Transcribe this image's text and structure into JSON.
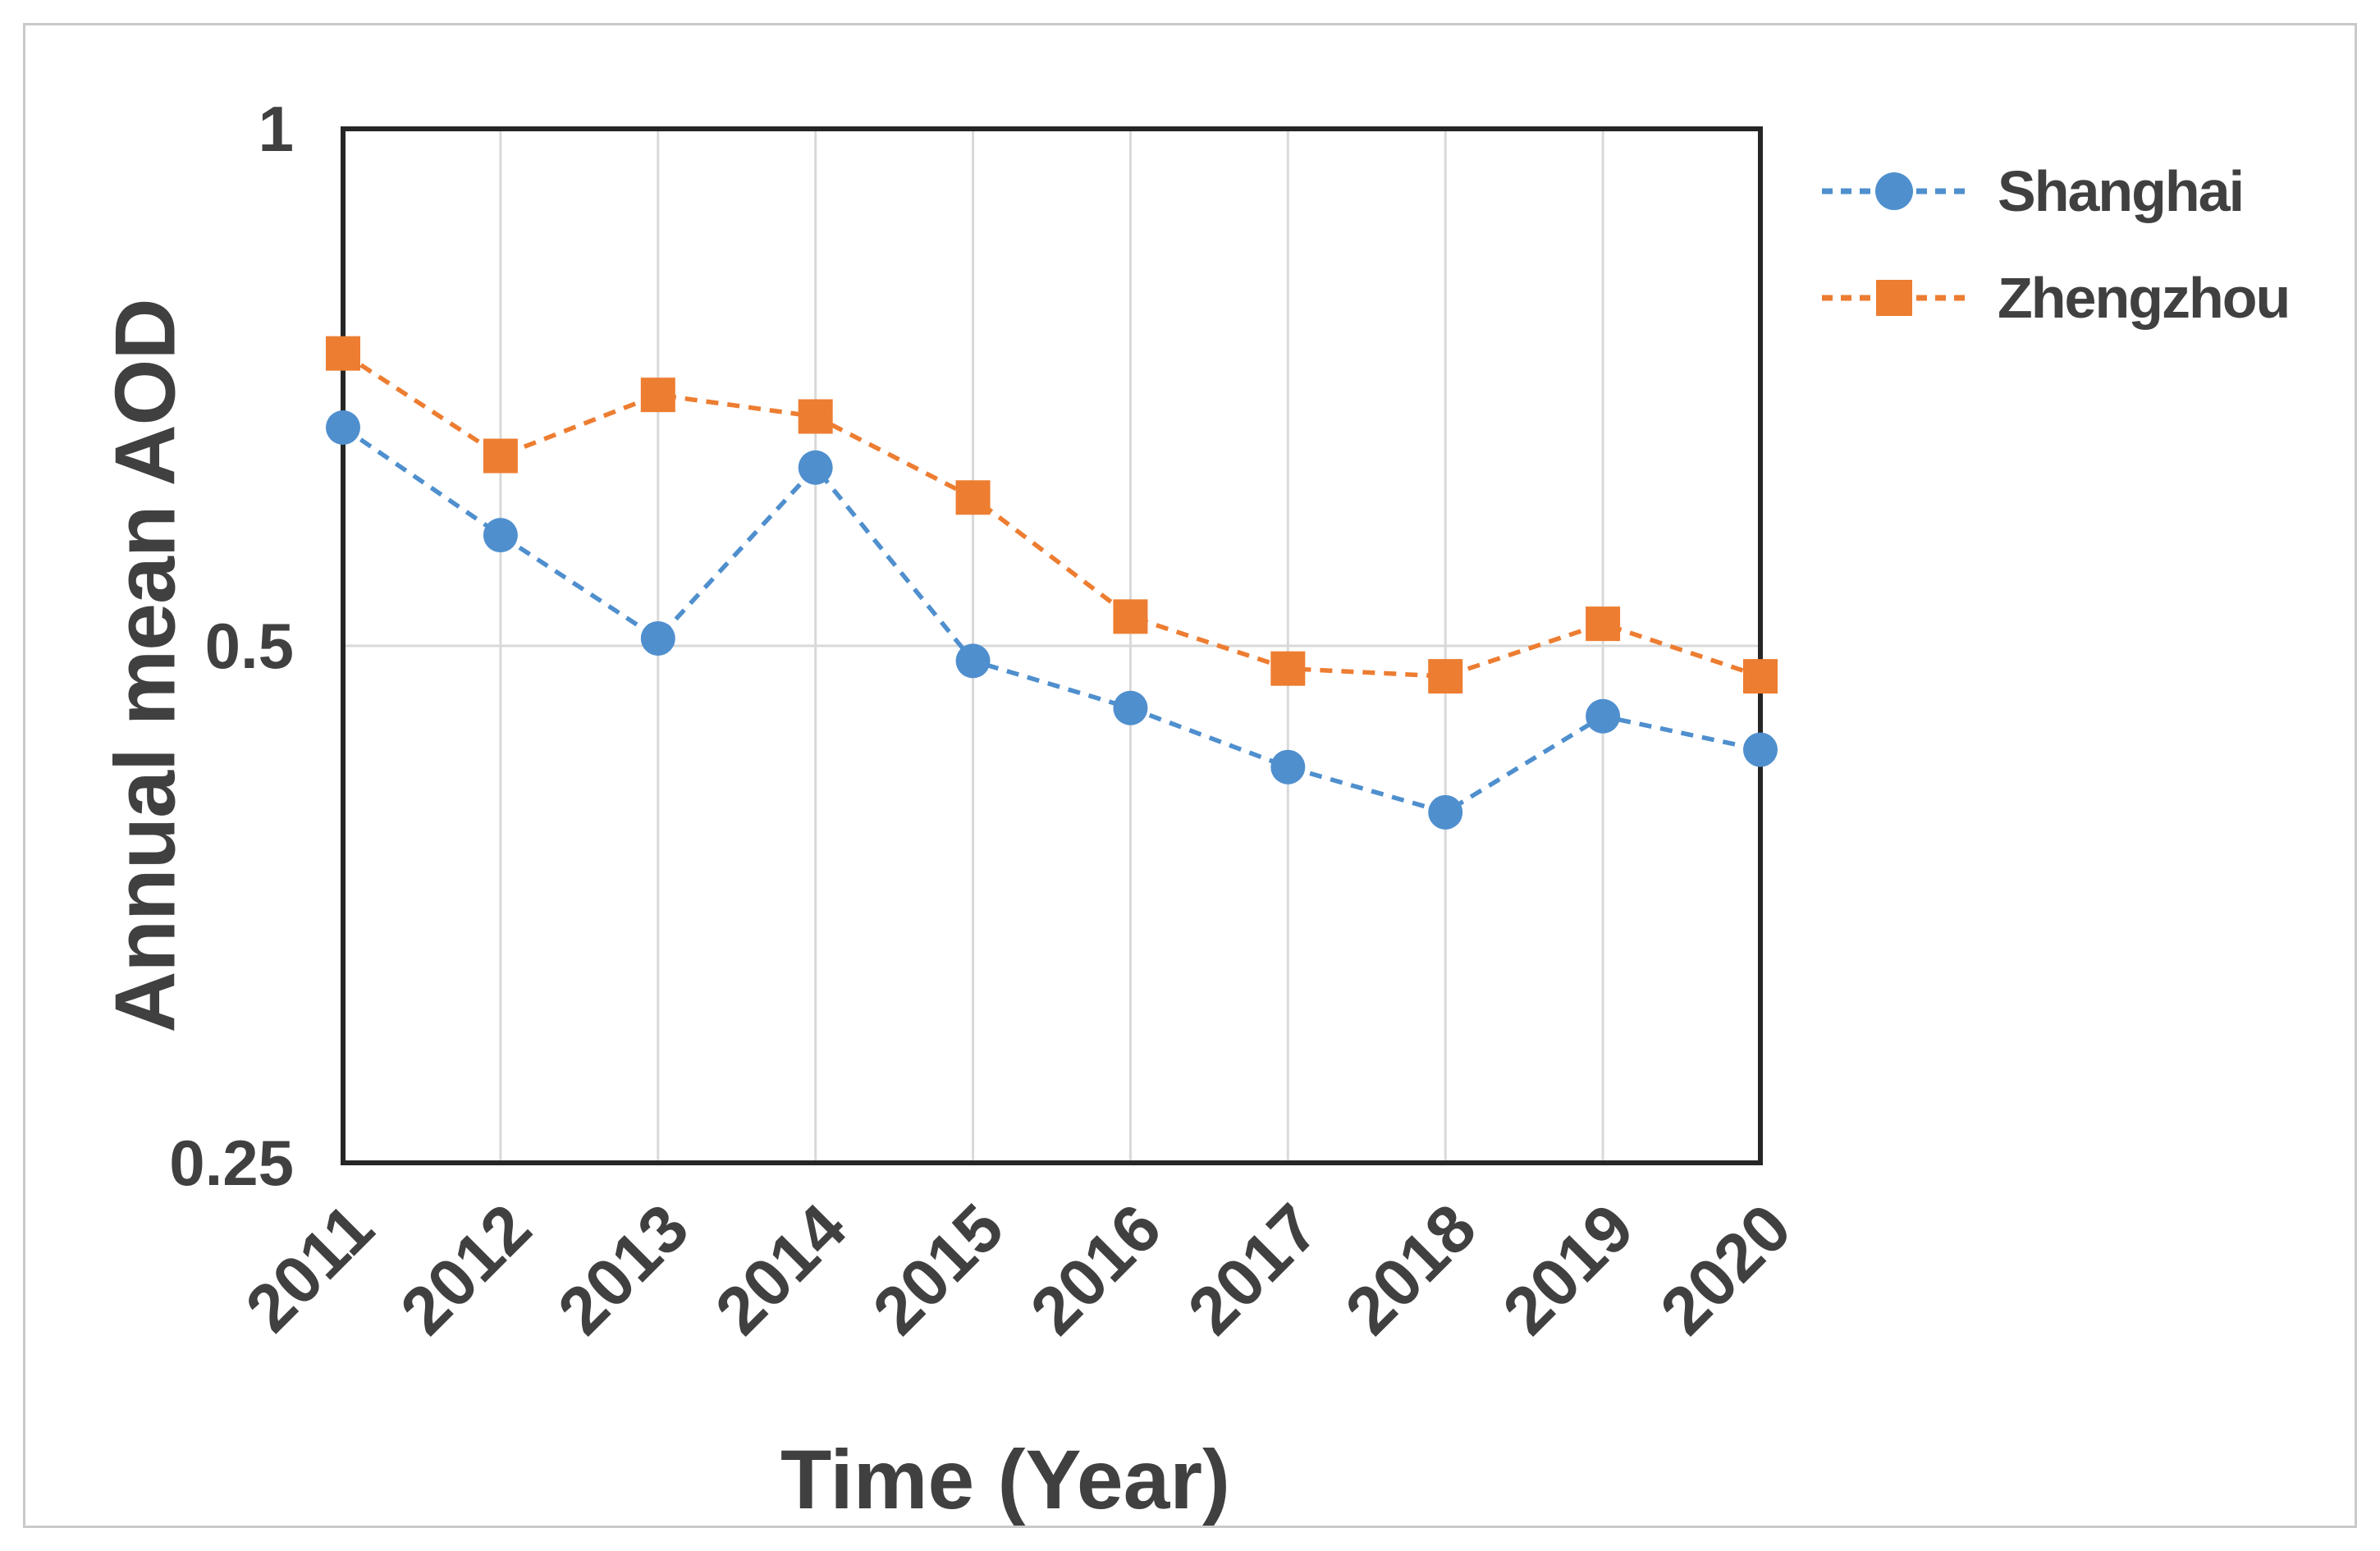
{
  "figure": {
    "background": "#ffffff",
    "frame_color": "#c9c9c9"
  },
  "colors": {
    "shanghai_blue": "#4f8fce",
    "zhengzhou_orange": "#ed7d31",
    "gridline_gray": "#d9d9d9",
    "plot_border": "#262626",
    "text_gray": "#404040"
  },
  "chart_data": {
    "type": "line",
    "title": "",
    "xlabel": "Time (Year)",
    "ylabel": "Annual mean AOD",
    "categories": [
      "2011",
      "2012",
      "2013",
      "2014",
      "2015",
      "2016",
      "2017",
      "2018",
      "2019",
      "2020"
    ],
    "series": [
      {
        "name": "Shanghai",
        "color": "#4f8fce",
        "marker": "circle",
        "line_style": "dashed",
        "values": [
          0.67,
          0.58,
          0.505,
          0.635,
          0.49,
          0.46,
          0.425,
          0.4,
          0.455,
          0.435
        ]
      },
      {
        "name": "Zhengzhou",
        "color": "#ed7d31",
        "marker": "square",
        "line_style": "dashed",
        "values": [
          0.74,
          0.645,
          0.7,
          0.68,
          0.61,
          0.52,
          0.485,
          0.48,
          0.515,
          0.48
        ]
      }
    ],
    "y_axis": {
      "scale": "log2",
      "range": [
        0.25,
        1
      ],
      "ticks": [
        1,
        0.5,
        0.25
      ],
      "tick_labels": [
        "1",
        "0.5",
        "0.25"
      ],
      "inner_gridline_values": [
        0.5
      ]
    },
    "x_axis": {
      "labels_rotation_deg": -45,
      "gridlines": "vertical-at-each-category"
    },
    "legend_position": "top-right-outside",
    "grid_on": true
  }
}
